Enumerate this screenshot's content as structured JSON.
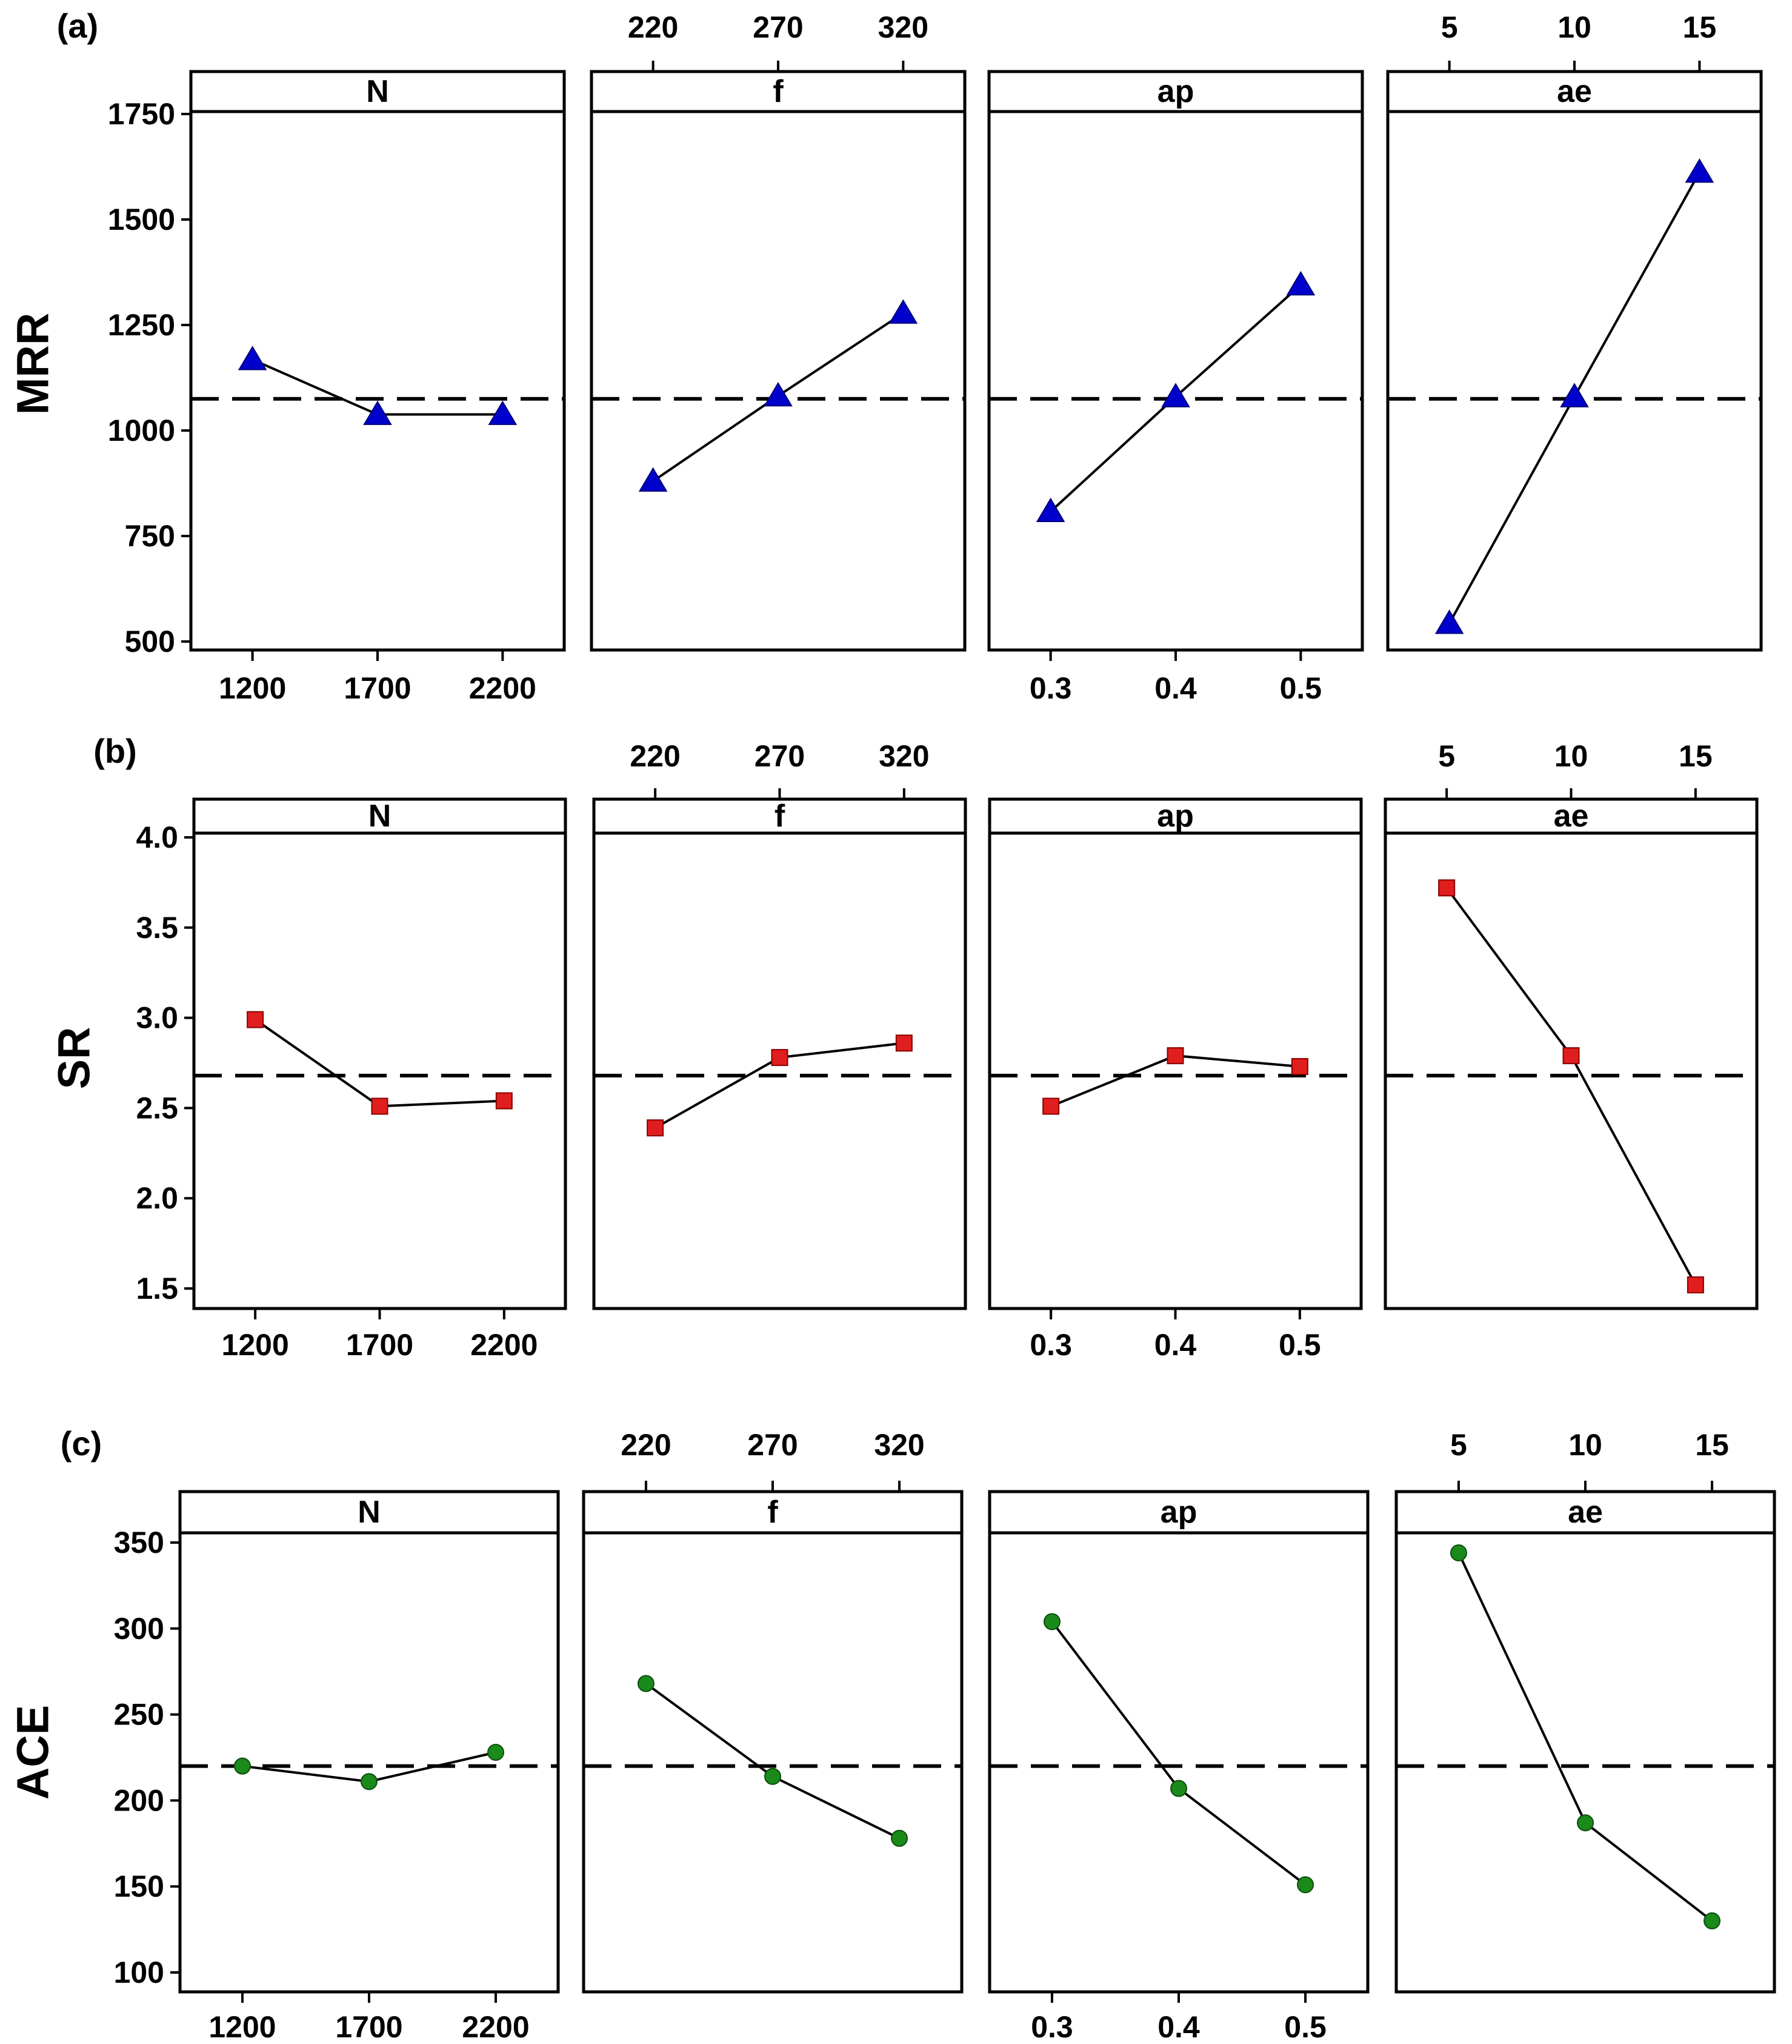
{
  "figure": {
    "colors": {
      "axis": "#000000",
      "mrr_marker": "#0000cc",
      "sr_marker": "#e01e1e",
      "ace_marker": "#1a8a1a"
    }
  },
  "chart_data": [
    {
      "type": "line",
      "chart_kind": "main effects plot",
      "tag": "(a)",
      "ylabel": "MRR",
      "ylim": [
        500,
        1750
      ],
      "yticks": [
        500,
        750,
        1000,
        1250,
        1500,
        1750
      ],
      "mean": 1075,
      "marker": "triangle",
      "color": "#0000cc",
      "facets": [
        {
          "label": "N",
          "x": [
            "1200",
            "1700",
            "2200"
          ],
          "values": [
            1168,
            1038,
            1038
          ],
          "tick_axis": "bottom"
        },
        {
          "label": "f",
          "x": [
            "220",
            "270",
            "320"
          ],
          "values": [
            880,
            1082,
            1278
          ],
          "tick_axis": "top"
        },
        {
          "label": "ap",
          "x": [
            "0.3",
            "0.4",
            "0.5"
          ],
          "values": [
            808,
            1080,
            1345
          ],
          "tick_axis": "bottom"
        },
        {
          "label": "ae",
          "x": [
            "5",
            "10",
            "15"
          ],
          "values": [
            543,
            1080,
            1612
          ],
          "tick_axis": "top"
        }
      ]
    },
    {
      "type": "line",
      "chart_kind": "main effects plot",
      "tag": "(b)",
      "ylabel": "SR",
      "ylim": [
        1.5,
        4.0
      ],
      "yticks": [
        "1.5",
        "2.0",
        "2.5",
        "3.0",
        "3.5",
        "4.0"
      ],
      "mean": 2.68,
      "marker": "square",
      "color": "#e01e1e",
      "facets": [
        {
          "label": "N",
          "x": [
            "1200",
            "1700",
            "2200"
          ],
          "values": [
            2.99,
            2.51,
            2.54
          ],
          "tick_axis": "bottom"
        },
        {
          "label": "f",
          "x": [
            "220",
            "270",
            "320"
          ],
          "values": [
            2.39,
            2.78,
            2.86
          ],
          "tick_axis": "top"
        },
        {
          "label": "ap",
          "x": [
            "0.3",
            "0.4",
            "0.5"
          ],
          "values": [
            2.51,
            2.79,
            2.73
          ],
          "tick_axis": "bottom"
        },
        {
          "label": "ae",
          "x": [
            "5",
            "10",
            "15"
          ],
          "values": [
            3.72,
            2.79,
            1.52
          ],
          "tick_axis": "top"
        }
      ]
    },
    {
      "type": "line",
      "chart_kind": "main effects plot",
      "tag": "(c)",
      "ylabel": "ACE",
      "ylim": [
        100,
        350
      ],
      "yticks": [
        100,
        150,
        200,
        250,
        300,
        350
      ],
      "mean": 220,
      "marker": "circle",
      "color": "#1a8a1a",
      "facets": [
        {
          "label": "N",
          "x": [
            "1200",
            "1700",
            "2200"
          ],
          "values": [
            220,
            211,
            228
          ],
          "tick_axis": "bottom"
        },
        {
          "label": "f",
          "x": [
            "220",
            "270",
            "320"
          ],
          "values": [
            268,
            214,
            178
          ],
          "tick_axis": "top"
        },
        {
          "label": "ap",
          "x": [
            "0.3",
            "0.4",
            "0.5"
          ],
          "values": [
            304,
            207,
            151
          ],
          "tick_axis": "bottom"
        },
        {
          "label": "ae",
          "x": [
            "5",
            "10",
            "15"
          ],
          "values": [
            344,
            187,
            130
          ],
          "tick_axis": "top"
        }
      ]
    }
  ]
}
